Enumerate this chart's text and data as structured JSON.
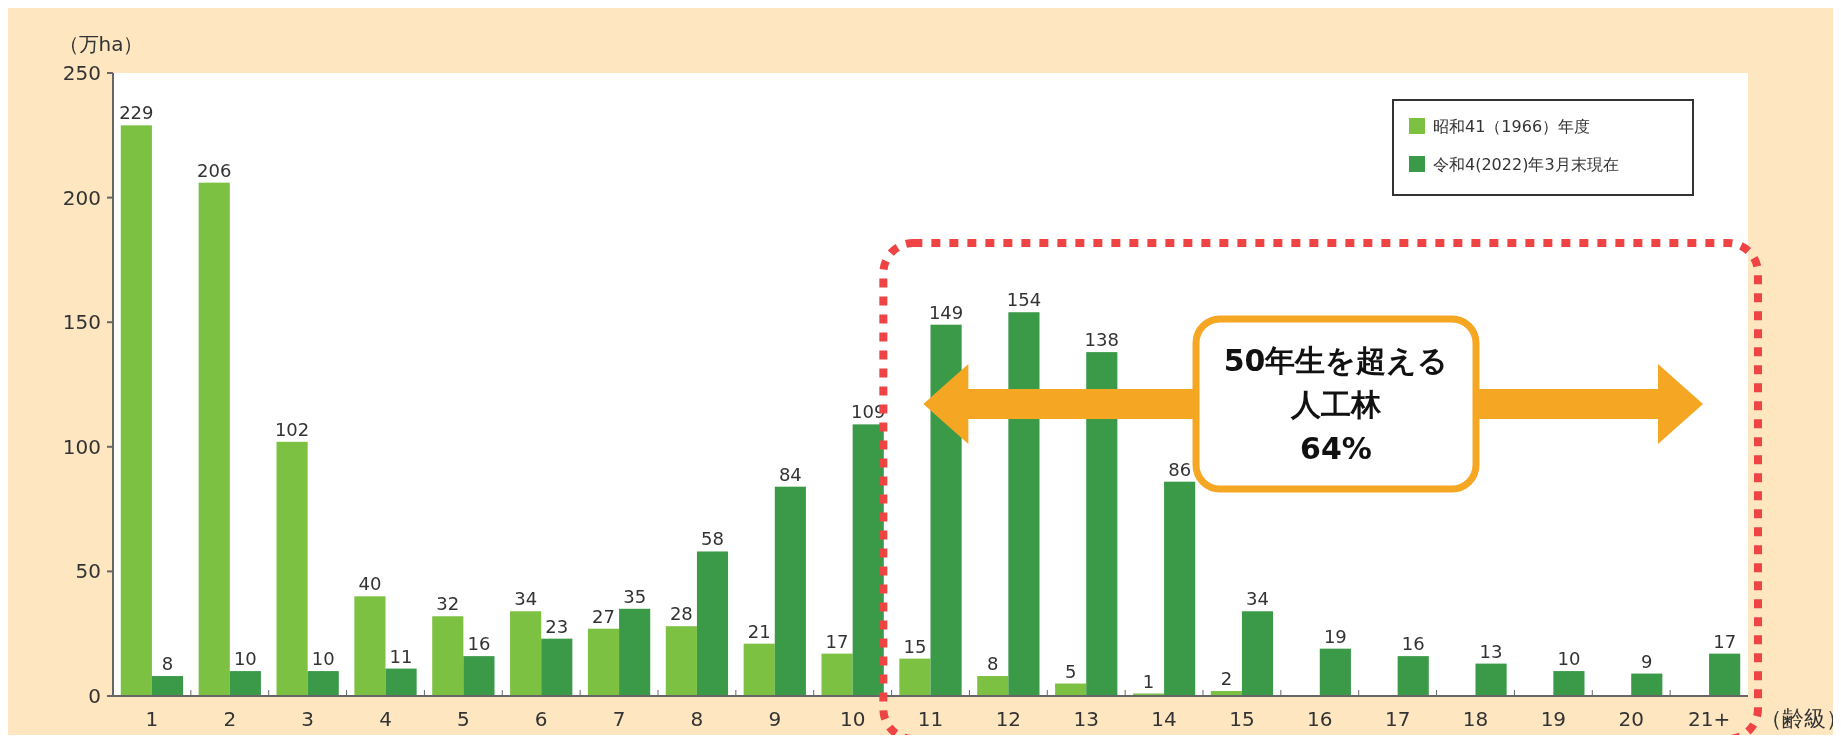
{
  "chart_data": {
    "type": "bar",
    "ylabel": "（万ha）",
    "xlabel": "（齢級）",
    "categories": [
      "1",
      "2",
      "3",
      "4",
      "5",
      "6",
      "7",
      "8",
      "9",
      "10",
      "11",
      "12",
      "13",
      "14",
      "15",
      "16",
      "17",
      "18",
      "19",
      "20",
      "21+"
    ],
    "series": [
      {
        "name": "昭和41（1966）年度",
        "color": "#7dc142",
        "values": [
          229,
          206,
          102,
          40,
          32,
          34,
          27,
          28,
          21,
          17,
          15,
          8,
          5,
          1,
          2,
          null,
          null,
          null,
          null,
          null,
          null
        ]
      },
      {
        "name": "令和4(2022)年3月末現在",
        "color": "#3a9a48",
        "values": [
          8,
          10,
          10,
          11,
          16,
          23,
          35,
          58,
          84,
          109,
          149,
          154,
          138,
          86,
          34,
          19,
          16,
          13,
          10,
          9,
          17
        ]
      }
    ],
    "ylim": [
      0,
      250
    ],
    "yticks": [
      0,
      50,
      100,
      150,
      200,
      250
    ],
    "data_labels": true,
    "legend": "top right",
    "grid": false,
    "annotations": [
      "50年生を超える人工林64%"
    ]
  }
}
